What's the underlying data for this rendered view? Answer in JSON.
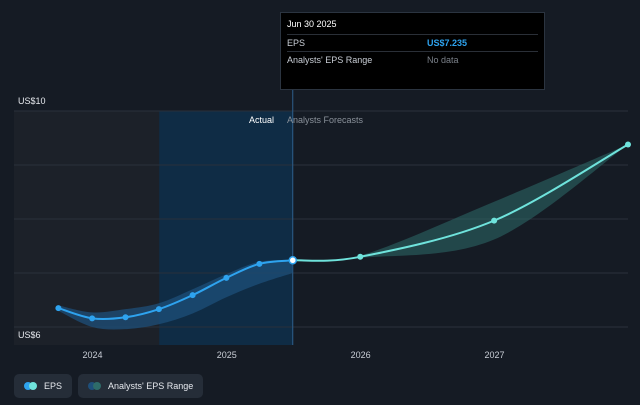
{
  "tooltip": {
    "title": "Jun 30 2025",
    "rows": [
      {
        "label": "EPS",
        "value": "US$7.235"
      },
      {
        "label": "Analysts' EPS Range",
        "value": "No data"
      }
    ]
  },
  "regions": {
    "actual_label": "Actual",
    "forecast_label": "Analysts Forecasts"
  },
  "legend": {
    "eps_label": "EPS",
    "range_label": "Analysts' EPS Range"
  },
  "colors": {
    "background": "#151b24",
    "eps_actual": "#2ea3ef",
    "eps_forecast": "#6fe3dc",
    "range_band": "#2e6b69",
    "highlight": "#0f2c45"
  },
  "chart_data": {
    "type": "line",
    "x_ticks": [
      "2024",
      "2025",
      "2026",
      "2027"
    ],
    "y_axis_labels": [
      "US$10",
      "US$6"
    ],
    "ylim": [
      6,
      10
    ],
    "xlim": [
      "2023-06-01",
      "2027-12-31"
    ],
    "grid": true,
    "legend_placement": "bottom-left",
    "highlight_range": [
      "2024-07-01",
      "2025-06-30"
    ],
    "divider_date": "2025-06-30",
    "series": [
      {
        "name": "EPS",
        "segment": "actual",
        "x": [
          "2023-09-30",
          "2023-12-31",
          "2024-03-31",
          "2024-06-30",
          "2024-09-30",
          "2024-12-31",
          "2025-03-31",
          "2025-06-30"
        ],
        "y": [
          6.35,
          6.16,
          6.18,
          6.33,
          6.59,
          6.91,
          7.17,
          7.235
        ]
      },
      {
        "name": "EPS",
        "segment": "forecast",
        "x": [
          "2025-06-30",
          "2025-12-31",
          "2026-12-31",
          "2027-12-31"
        ],
        "y": [
          7.235,
          7.3,
          7.97,
          9.38
        ]
      },
      {
        "name": "Analysts' EPS Range",
        "segment": "actual",
        "x": [
          "2023-09-30",
          "2023-12-31",
          "2024-03-31",
          "2024-06-30",
          "2024-09-30",
          "2024-12-31",
          "2025-03-31",
          "2025-06-30"
        ],
        "low": [
          6.3,
          6.0,
          5.96,
          6.05,
          6.25,
          6.55,
          6.8,
          7.0
        ],
        "high": [
          6.4,
          6.27,
          6.33,
          6.44,
          6.7,
          6.98,
          7.21,
          7.235
        ]
      },
      {
        "name": "Analysts' EPS Range",
        "segment": "forecast",
        "x": [
          "2025-06-30",
          "2025-12-31",
          "2026-12-31",
          "2027-12-31"
        ],
        "low": [
          7.235,
          7.28,
          7.62,
          9.38
        ],
        "high": [
          7.235,
          7.32,
          8.32,
          9.38
        ]
      }
    ]
  }
}
